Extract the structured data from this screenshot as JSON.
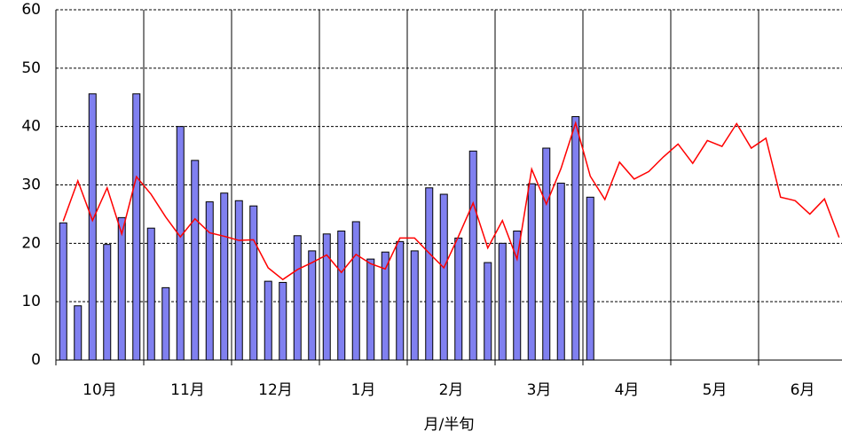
{
  "chart_data": {
    "type": "bar_line",
    "xlabel": "月/半旬",
    "months": [
      "10月",
      "11月",
      "12月",
      "1月",
      "2月",
      "3月",
      "4月",
      "5月",
      "6月"
    ],
    "pentads_per_month": 6,
    "series": [
      {
        "type": "bar",
        "color": "#8080f0",
        "values": [
          23.5,
          9.3,
          45.6,
          19.8,
          24.4,
          45.6,
          22.6,
          12.4,
          40.0,
          34.2,
          27.1,
          28.6,
          27.3,
          26.4,
          13.5,
          13.3,
          21.3,
          18.7,
          21.6,
          22.1,
          23.7,
          17.3,
          18.5,
          20.3,
          18.7,
          29.5,
          28.4,
          20.9,
          35.8,
          16.7,
          20.0,
          22.1,
          30.2,
          36.3,
          30.3,
          41.7,
          27.9,
          null,
          null,
          null,
          null,
          null,
          null,
          null,
          null,
          null,
          null,
          null,
          null,
          null,
          null,
          null,
          null,
          null
        ]
      },
      {
        "type": "line",
        "color": "#ff0000",
        "values": [
          23.8,
          30.7,
          23.9,
          29.5,
          21.6,
          31.4,
          28.4,
          24.5,
          21.1,
          24.2,
          21.8,
          21.2,
          20.5,
          20.6,
          15.8,
          13.8,
          15.5,
          16.7,
          18.0,
          15.0,
          18.1,
          16.5,
          15.6,
          20.9,
          20.9,
          18.3,
          15.8,
          21.2,
          26.9,
          19.2,
          23.9,
          17.3,
          32.7,
          26.7,
          32.8,
          40.6,
          31.5,
          27.5,
          33.9,
          31.0,
          32.3,
          34.8,
          37.0,
          33.7,
          37.6,
          36.6,
          40.5,
          36.3,
          38.0,
          27.9,
          27.3,
          25.0,
          27.6,
          21.0
        ]
      }
    ],
    "ylim": [
      0,
      60
    ],
    "yticks": [
      0,
      10,
      20,
      30,
      40,
      50,
      60
    ],
    "grid": true
  }
}
